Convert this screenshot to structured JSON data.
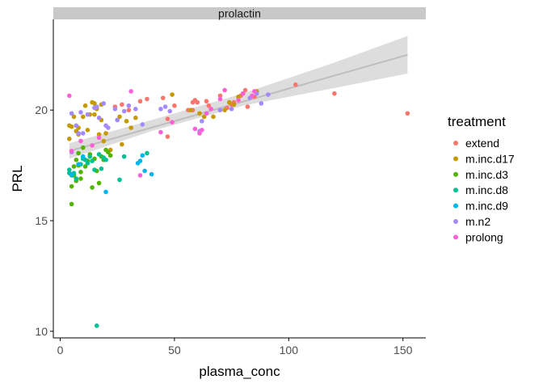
{
  "chart_data": {
    "type": "scatter",
    "facet_label": "prolactin",
    "xlabel": "plasma_conc",
    "ylabel": "PRL",
    "xlim": [
      -3,
      160
    ],
    "ylim": [
      9.7,
      24.1
    ],
    "x_ticks": [
      0,
      50,
      100,
      150
    ],
    "y_ticks": [
      10,
      15,
      20
    ],
    "x_tick_labels": [
      "0",
      "50",
      "100",
      "150"
    ],
    "y_tick_labels": [
      "10",
      "15",
      "20"
    ],
    "grid": false,
    "legend": {
      "title": "treatment",
      "position": "right",
      "entries": [
        "extend",
        "m.inc.d17",
        "m.inc.d3",
        "m.inc.d8",
        "m.inc.d9",
        "m.n2",
        "prolong"
      ]
    },
    "colors": {
      "extend": "#F8766D",
      "m.inc.d17": "#C49A00",
      "m.inc.d3": "#53B400",
      "m.inc.d8": "#00C094",
      "m.inc.d9": "#00B6EB",
      "m.n2": "#A58AFF",
      "prolong": "#FB61D7",
      "fit_line": "#BEBEBE",
      "ribbon": "#D9D9D9",
      "strip": "#C8C8C8"
    },
    "trend": {
      "method": "lm",
      "line": [
        [
          4,
          18.15
        ],
        [
          152,
          22.5
        ]
      ],
      "ribbon_upper": [
        [
          4,
          18.5
        ],
        [
          40,
          19.55
        ],
        [
          80,
          20.75
        ],
        [
          120,
          22.15
        ],
        [
          152,
          23.35
        ]
      ],
      "ribbon_lower": [
        [
          4,
          17.8
        ],
        [
          40,
          19.05
        ],
        [
          80,
          20.2
        ],
        [
          120,
          21.0
        ],
        [
          152,
          21.65
        ]
      ]
    },
    "series": [
      {
        "name": "extend",
        "points": [
          [
            152,
            19.85
          ],
          [
            120,
            20.75
          ],
          [
            103,
            21.15
          ],
          [
            85,
            20.6
          ],
          [
            82,
            20.15
          ],
          [
            81,
            20.9
          ],
          [
            79,
            20.65
          ],
          [
            76,
            20.35
          ],
          [
            75,
            20.25
          ],
          [
            73,
            20.1
          ],
          [
            70,
            20.65
          ],
          [
            65,
            20.2
          ],
          [
            64,
            20.4
          ],
          [
            60,
            20.35
          ],
          [
            59,
            20.45
          ],
          [
            58,
            20.35
          ],
          [
            58,
            20.0
          ],
          [
            56,
            20.0
          ],
          [
            50,
            20.2
          ],
          [
            47,
            19.6
          ],
          [
            47,
            18.8
          ],
          [
            45,
            20.55
          ],
          [
            38,
            20.5
          ],
          [
            35,
            20.4
          ],
          [
            30,
            20.0
          ],
          [
            27,
            20.25
          ],
          [
            24,
            20.15
          ]
        ]
      },
      {
        "name": "m.inc.d17",
        "points": [
          [
            4,
            19.3
          ],
          [
            4,
            18.7
          ],
          [
            5,
            19.25
          ],
          [
            6,
            19.7
          ],
          [
            7,
            19.05
          ],
          [
            8,
            19.2
          ],
          [
            8,
            18.9
          ],
          [
            10,
            19.7
          ],
          [
            11,
            20.2
          ],
          [
            12,
            19.1
          ],
          [
            13,
            19.8
          ],
          [
            14,
            20.35
          ],
          [
            15,
            20.3
          ],
          [
            15,
            19.8
          ],
          [
            16,
            20.05
          ],
          [
            17,
            18.9
          ],
          [
            18,
            19.55
          ],
          [
            18,
            20.25
          ],
          [
            19,
            18.6
          ],
          [
            20,
            18.95
          ],
          [
            21,
            18.1
          ],
          [
            22,
            18.2
          ],
          [
            25,
            19.55
          ],
          [
            26,
            19.7
          ],
          [
            27,
            18.45
          ],
          [
            29,
            19.5
          ],
          [
            31,
            19.2
          ],
          [
            33,
            19.65
          ],
          [
            49,
            20.7
          ],
          [
            57,
            20.0
          ],
          [
            61,
            19.85
          ],
          [
            63,
            19.7
          ],
          [
            67,
            19.7
          ],
          [
            72,
            20.0
          ],
          [
            74,
            20.35
          ],
          [
            76,
            20.25
          ],
          [
            78,
            20.6
          ],
          [
            80,
            20.75
          ],
          [
            86,
            20.85
          ]
        ]
      },
      {
        "name": "m.inc.d3",
        "points": [
          [
            5,
            15.75
          ],
          [
            5,
            16.55
          ],
          [
            6,
            17.05
          ],
          [
            6,
            17.45
          ],
          [
            7,
            16.8
          ],
          [
            7,
            17.75
          ],
          [
            8,
            17.5
          ],
          [
            8,
            18.05
          ],
          [
            9,
            17.2
          ],
          [
            9,
            16.9
          ],
          [
            10,
            17.85
          ],
          [
            10,
            18.3
          ],
          [
            11,
            17.45
          ],
          [
            12,
            17.7
          ],
          [
            13,
            18.0
          ],
          [
            14,
            16.5
          ],
          [
            15,
            17.8
          ],
          [
            16,
            17.25
          ],
          [
            17,
            16.7
          ],
          [
            18,
            17.9
          ],
          [
            19,
            17.75
          ],
          [
            20,
            18.2
          ],
          [
            21,
            18.1
          ],
          [
            22,
            17.95
          ]
        ]
      },
      {
        "name": "m.inc.d8",
        "points": [
          [
            4,
            17.3
          ],
          [
            4,
            17.15
          ],
          [
            5,
            17.05
          ],
          [
            6,
            17.15
          ],
          [
            7,
            16.9
          ],
          [
            9,
            17.55
          ],
          [
            10,
            17.8
          ],
          [
            11,
            17.75
          ],
          [
            12,
            17.6
          ],
          [
            13,
            17.9
          ],
          [
            14,
            17.7
          ],
          [
            15,
            17.3
          ],
          [
            16,
            10.25
          ],
          [
            17,
            18.0
          ],
          [
            18,
            17.35
          ],
          [
            19,
            17.85
          ],
          [
            20,
            17.75
          ],
          [
            26,
            16.85
          ],
          [
            28,
            17.9
          ],
          [
            38,
            18.05
          ]
        ]
      },
      {
        "name": "m.inc.d9",
        "points": [
          [
            5,
            17.1
          ],
          [
            8,
            17.55
          ],
          [
            10,
            17.9
          ],
          [
            20,
            16.3
          ],
          [
            34,
            17.6
          ],
          [
            35,
            17.7
          ],
          [
            36,
            17.95
          ],
          [
            37,
            17.25
          ],
          [
            40,
            17.1
          ]
        ]
      },
      {
        "name": "m.n2",
        "points": [
          [
            5,
            19.85
          ],
          [
            5,
            18.1
          ],
          [
            7,
            19.3
          ],
          [
            8,
            18.95
          ],
          [
            9,
            19.9
          ],
          [
            10,
            18.95
          ],
          [
            12,
            19.8
          ],
          [
            15,
            20.1
          ],
          [
            16,
            20.15
          ],
          [
            17,
            19.65
          ],
          [
            19,
            20.3
          ],
          [
            20,
            19.3
          ],
          [
            21,
            19.2
          ],
          [
            24,
            20.05
          ],
          [
            25,
            19.55
          ],
          [
            28,
            19.95
          ],
          [
            30,
            20.2
          ],
          [
            33,
            20.05
          ],
          [
            36,
            19.35
          ],
          [
            44,
            20.05
          ],
          [
            46,
            20.15
          ],
          [
            48,
            19.95
          ],
          [
            61,
            19.05
          ],
          [
            62,
            19.5
          ],
          [
            70,
            20.0
          ],
          [
            75,
            20.05
          ],
          [
            83,
            20.55
          ],
          [
            86,
            20.75
          ],
          [
            88,
            20.3
          ],
          [
            91,
            20.7
          ]
        ]
      },
      {
        "name": "prolong",
        "points": [
          [
            4,
            20.65
          ],
          [
            5,
            18.15
          ],
          [
            9,
            18.6
          ],
          [
            14,
            18.4
          ],
          [
            17,
            18.75
          ],
          [
            31,
            20.85
          ],
          [
            35,
            17.05
          ],
          [
            44,
            19.0
          ],
          [
            49,
            19.45
          ],
          [
            59,
            19.15
          ],
          [
            61,
            18.95
          ],
          [
            62,
            19.1
          ],
          [
            64,
            19.85
          ],
          [
            66,
            20.05
          ],
          [
            70,
            20.5
          ],
          [
            72,
            20.9
          ],
          [
            78,
            20.45
          ],
          [
            80,
            20.75
          ],
          [
            84,
            20.65
          ],
          [
            85,
            20.85
          ]
        ]
      }
    ]
  }
}
